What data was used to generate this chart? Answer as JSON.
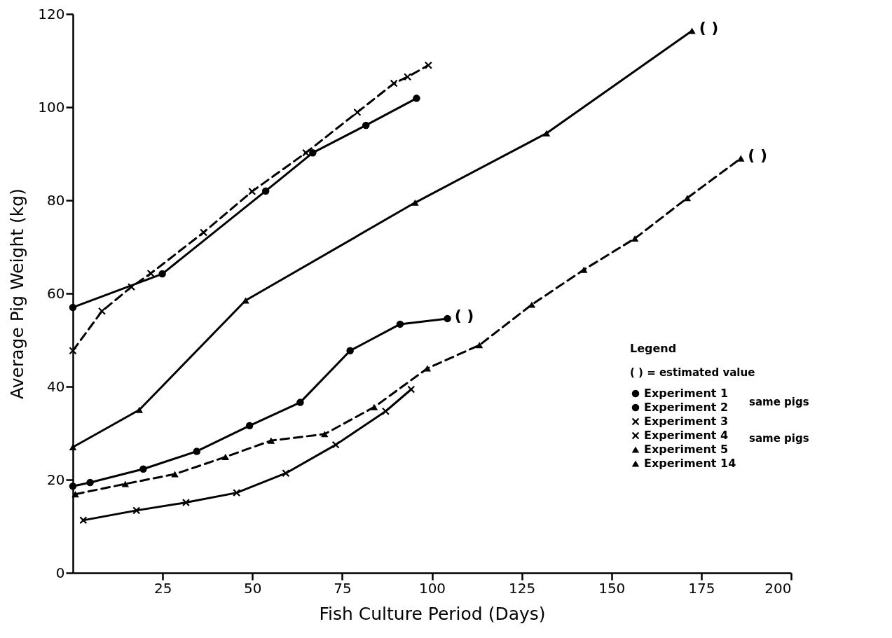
{
  "chart_data": {
    "type": "line",
    "xlabel": "Fish Culture Period (Days)",
    "ylabel": "Average Pig Weight (kg)",
    "legend_title": "Legend",
    "legend": "bottom right",
    "xlim": [
      0,
      200
    ],
    "ylim": [
      0,
      120
    ],
    "xticks": [
      25,
      50,
      75,
      100,
      125,
      150,
      175,
      200
    ],
    "yticks": [
      0,
      20,
      40,
      60,
      80,
      100,
      120
    ],
    "series": [
      {
        "name": "Experiment 1",
        "color": "#000000",
        "marker": "circle",
        "line_style": "solid",
        "x": [
          0,
          4.8,
          19.6,
          34.5,
          49.2,
          63.3,
          77.2,
          91.1,
          104.3
        ],
        "values": [
          18.6,
          19.4,
          22.3,
          26.1,
          31.6,
          36.6,
          47.7,
          53.4,
          54.6
        ]
      },
      {
        "name": "Experiment 2",
        "color": "#000000",
        "marker": "circle",
        "line_style": "solid",
        "x": [
          0,
          24.9,
          53.7,
          66.8,
          81.6,
          95.7
        ],
        "values": [
          57.0,
          64.2,
          82.0,
          90.2,
          96.1,
          101.9
        ]
      },
      {
        "name": "Experiment 3",
        "color": "#000000",
        "marker": "cross",
        "line_style": "solid",
        "x": [
          2.9,
          17.7,
          31.5,
          45.6,
          59.3,
          73.2,
          87.1,
          94.2
        ],
        "values": [
          11.3,
          13.4,
          15.1,
          17.2,
          21.4,
          27.5,
          34.7,
          39.4
        ]
      },
      {
        "name": "Experiment 4",
        "color": "#000000",
        "marker": "cross",
        "line_style": "dashed",
        "x": [
          0,
          8.1,
          16.3,
          21.7,
          36.4,
          49.9,
          64.9,
          79.2,
          89.4,
          93.2,
          99.0
        ],
        "values": [
          47.7,
          56.2,
          61.4,
          64.3,
          73.1,
          81.9,
          90.2,
          98.9,
          105.1,
          106.5,
          109.0
        ]
      },
      {
        "name": "Experiment 5",
        "color": "#000000",
        "marker": "triangle",
        "line_style": "dashed",
        "x": [
          0.7,
          14.6,
          28.4,
          42.5,
          55.2,
          70.1,
          83.9,
          98.7,
          113.2,
          127.8,
          142.3,
          156.5,
          171.1,
          186.0
        ],
        "values": [
          16.9,
          19.1,
          21.2,
          24.9,
          28.4,
          29.8,
          35.6,
          43.9,
          48.9,
          57.6,
          65.1,
          71.8,
          80.5,
          89.0
        ]
      },
      {
        "name": "Experiment 14",
        "color": "#000000",
        "marker": "triangle",
        "line_style": "solid",
        "x": [
          0,
          18.5,
          48.1,
          95.3,
          131.9,
          172.4
        ],
        "values": [
          27.0,
          35.0,
          58.5,
          79.5,
          94.4,
          116.4
        ]
      }
    ],
    "annotations": [
      {
        "text": "( )",
        "x": 104.3,
        "y": 54.6
      },
      {
        "text": "( )",
        "x": 186.0,
        "y": 89.0
      },
      {
        "text": "( )",
        "x": 172.4,
        "y": 116.4
      },
      "( ) = estimated value",
      "same pigs",
      "same pigs"
    ]
  }
}
